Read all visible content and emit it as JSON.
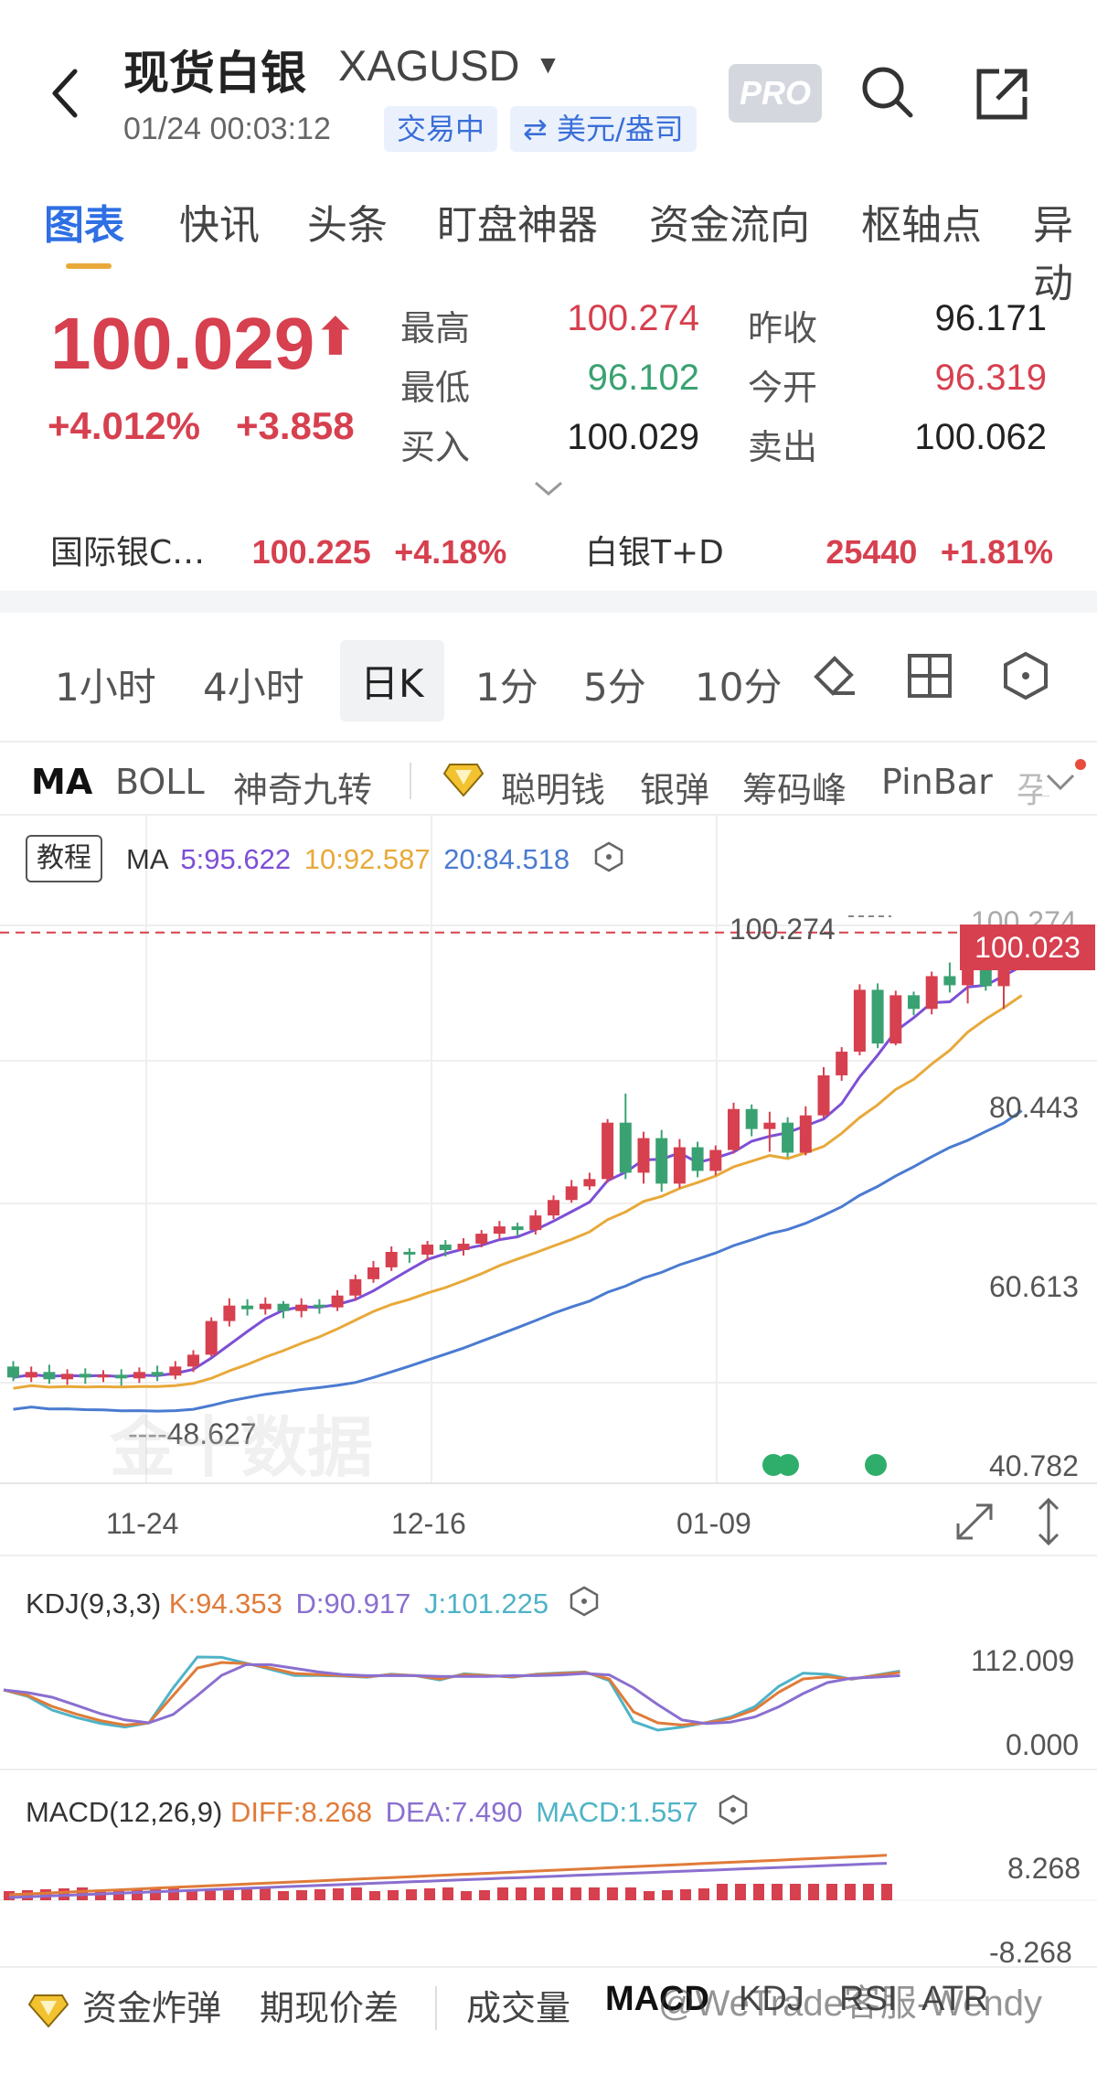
{
  "header": {
    "title": "现货白银",
    "code": "XAGUSD",
    "time": "01/24 00:03:12",
    "status": "交易中",
    "unit": "⇄ 美元/盎司",
    "pro": "PRO"
  },
  "tabs": [
    "图表",
    "快讯",
    "头条",
    "盯盘神器",
    "资金流向",
    "枢轴点",
    "异动"
  ],
  "quote": {
    "price": "100.029",
    "pct": "+4.012%",
    "chg": "+3.858",
    "high_label": "最高",
    "high": "100.274",
    "low_label": "最低",
    "low": "96.102",
    "bid_label": "买入",
    "bid": "100.029",
    "prev_label": "昨收",
    "prev": "96.171",
    "open_label": "今开",
    "open": "96.319",
    "ask_label": "卖出",
    "ask": "100.062"
  },
  "related": [
    {
      "name": "国际银C…",
      "price": "100.225",
      "pct": "+4.18%"
    },
    {
      "name": "白银T+D",
      "price": "25440",
      "pct": "+1.81%"
    }
  ],
  "periods": [
    "1小时",
    "4小时",
    "日K",
    "1分",
    "5分",
    "10分"
  ],
  "indicators": [
    "MA",
    "BOLL",
    "神奇九转",
    "聪明钱",
    "银弹",
    "筹码峰",
    "PinBar",
    "孕"
  ],
  "chart": {
    "tutorial": "教程",
    "ma_title": "MA",
    "ma5": "5:95.622",
    "ma10": "10:92.587",
    "ma20": "20:84.518",
    "high_mark": "100.274",
    "low_mark": "48.627",
    "current_tag": "100.023",
    "yticks": [
      "100.274",
      "80.443",
      "60.613",
      "40.782"
    ],
    "xticks": [
      "11-24",
      "12-16",
      "01-09"
    ],
    "watermark": "金十数据",
    "colors": {
      "up": "#d6404f",
      "down": "#3aa272",
      "ma5": "#7d4fd6",
      "ma10": "#e8a93a",
      "ma20": "#4a7bd0"
    }
  },
  "kdj": {
    "title": "KDJ(9,3,3)",
    "k": "K:94.353",
    "d": "D:90.917",
    "j": "J:101.225",
    "ytop": "112.009",
    "ybot": "0.000"
  },
  "macd": {
    "title": "MACD(12,26,9)",
    "diff": "DIFF:8.268",
    "dea": "DEA:7.490",
    "macd": "MACD:1.557",
    "ytop": "8.268",
    "ybot": "-8.268"
  },
  "bottom": [
    "资金炸弹",
    "期现价差",
    "成交量",
    "MACD",
    "KDJ",
    "RSI",
    "ATR"
  ],
  "watermark_text": "@WeTrade客服-Wendy",
  "chart_data": {
    "type": "candlestick",
    "title": "现货白银 XAGUSD 日K",
    "ylim": [
      40.782,
      100.274
    ],
    "x_ticks": [
      "11-24",
      "12-16",
      "01-09"
    ],
    "candles": [
      [
        51.8,
        50.6,
        52.4,
        50.2
      ],
      [
        50.6,
        51.2,
        51.8,
        50.1
      ],
      [
        51.2,
        50.4,
        52.0,
        49.9
      ],
      [
        50.4,
        51.0,
        51.5,
        49.8
      ],
      [
        51.0,
        50.6,
        51.6,
        49.9
      ],
      [
        50.6,
        50.9,
        51.4,
        50.1
      ],
      [
        50.9,
        50.5,
        51.5,
        49.7
      ],
      [
        50.5,
        51.2,
        51.7,
        50.0
      ],
      [
        51.2,
        50.8,
        51.9,
        50.2
      ],
      [
        50.8,
        51.8,
        52.4,
        50.4
      ],
      [
        51.8,
        53.1,
        53.6,
        51.2
      ],
      [
        53.1,
        56.8,
        57.2,
        52.9
      ],
      [
        56.8,
        58.5,
        59.3,
        56.2
      ],
      [
        58.5,
        58.1,
        59.2,
        57.4
      ],
      [
        58.1,
        58.7,
        59.4,
        57.5
      ],
      [
        58.7,
        57.9,
        59.0,
        57.1
      ],
      [
        57.9,
        58.6,
        59.3,
        57.2
      ],
      [
        58.6,
        58.3,
        59.2,
        57.6
      ],
      [
        58.3,
        59.6,
        60.2,
        57.9
      ],
      [
        59.6,
        61.4,
        61.9,
        59.1
      ],
      [
        61.4,
        62.7,
        63.4,
        61.0
      ],
      [
        62.7,
        64.4,
        65.0,
        62.3
      ],
      [
        64.4,
        64.1,
        64.8,
        63.2
      ],
      [
        64.1,
        65.2,
        65.6,
        63.5
      ],
      [
        65.2,
        64.6,
        65.7,
        63.9
      ],
      [
        64.6,
        65.3,
        65.9,
        64.0
      ],
      [
        65.3,
        66.4,
        66.8,
        64.9
      ],
      [
        66.4,
        67.2,
        67.8,
        65.8
      ],
      [
        67.2,
        66.8,
        67.6,
        66.1
      ],
      [
        66.8,
        68.4,
        69.0,
        66.3
      ],
      [
        68.4,
        70.1,
        70.6,
        68.0
      ],
      [
        70.1,
        71.6,
        72.3,
        69.8
      ],
      [
        71.6,
        72.4,
        73.1,
        71.2
      ],
      [
        72.4,
        78.6,
        79.0,
        72.0
      ],
      [
        78.6,
        73.1,
        81.8,
        72.4
      ],
      [
        73.1,
        76.9,
        77.6,
        71.9
      ],
      [
        76.9,
        71.9,
        77.8,
        71.0
      ],
      [
        71.9,
        75.9,
        76.8,
        71.4
      ],
      [
        75.9,
        73.3,
        76.5,
        72.6
      ],
      [
        73.3,
        75.6,
        76.1,
        72.8
      ],
      [
        75.6,
        80.1,
        80.8,
        75.2
      ],
      [
        80.1,
        77.9,
        80.6,
        77.1
      ],
      [
        77.9,
        78.6,
        79.8,
        75.4
      ],
      [
        78.6,
        75.3,
        79.2,
        74.8
      ],
      [
        75.3,
        79.4,
        80.4,
        75.0
      ],
      [
        79.4,
        83.8,
        84.7,
        79.1
      ],
      [
        83.8,
        86.4,
        86.9,
        83.2
      ],
      [
        86.4,
        93.2,
        93.8,
        86.0
      ],
      [
        93.2,
        87.3,
        93.9,
        86.8
      ],
      [
        87.3,
        92.6,
        93.1,
        87.1
      ],
      [
        92.6,
        91.1,
        93.0,
        90.4
      ],
      [
        91.1,
        94.7,
        95.2,
        90.5
      ],
      [
        94.7,
        93.7,
        96.2,
        92.9
      ],
      [
        93.7,
        95.4,
        96.3,
        91.7
      ],
      [
        95.4,
        93.6,
        96.4,
        93.1
      ],
      [
        93.6,
        96.3,
        96.8,
        91.1
      ],
      [
        96.3,
        100.0,
        100.3,
        96.1
      ]
    ]
  }
}
